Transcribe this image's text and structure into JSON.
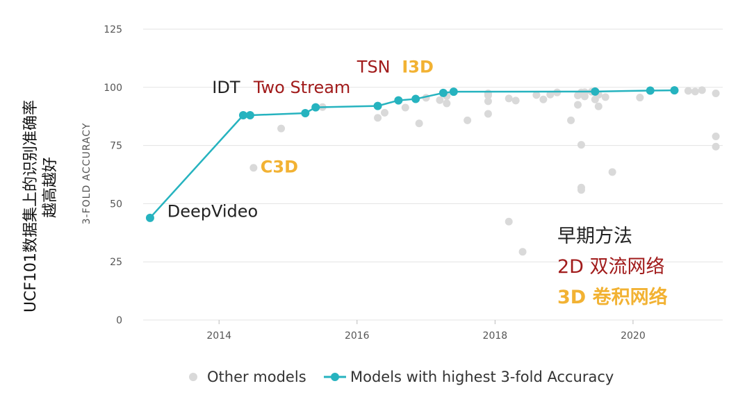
{
  "colors": {
    "best": "#26b3bf",
    "other": "#d9d9d9",
    "red": "#a11b1b",
    "orange": "#f2b233",
    "dark": "#222222",
    "grid": "#e3e3e3"
  },
  "outer_ylabel_lines": [
    "UCF101数据集上的识别准确率",
    "越高越好"
  ],
  "chart_data": {
    "type": "scatter",
    "ylabel": "3-FOLD ACCURACY",
    "xlim": [
      2012.9,
      2021.3
    ],
    "ylim": [
      0,
      125
    ],
    "xticks": [
      2014,
      2016,
      2018,
      2020
    ],
    "yticks": [
      0,
      25,
      50,
      75,
      100,
      125
    ],
    "grid": true,
    "legend_position": "bottom",
    "series": [
      {
        "name": "Other models",
        "points": [
          [
            2014.5,
            65.4
          ],
          [
            2014.9,
            82.3
          ],
          [
            2015.5,
            91.5
          ],
          [
            2016.3,
            86.9
          ],
          [
            2016.4,
            89.1
          ],
          [
            2016.7,
            91.3
          ],
          [
            2016.9,
            84.5
          ],
          [
            2017.0,
            95.5
          ],
          [
            2017.2,
            94.5
          ],
          [
            2017.3,
            96.2
          ],
          [
            2017.3,
            93.1
          ],
          [
            2017.6,
            85.8
          ],
          [
            2017.9,
            88.6
          ],
          [
            2017.9,
            94.0
          ],
          [
            2017.9,
            96.5
          ],
          [
            2017.9,
            97.4
          ],
          [
            2018.2,
            42.3
          ],
          [
            2018.2,
            95.2
          ],
          [
            2018.3,
            94.3
          ],
          [
            2018.4,
            29.3
          ],
          [
            2018.6,
            96.7
          ],
          [
            2018.7,
            94.8
          ],
          [
            2018.8,
            96.9
          ],
          [
            2018.9,
            97.8
          ],
          [
            2019.1,
            85.8
          ],
          [
            2019.2,
            96.5
          ],
          [
            2019.2,
            92.5
          ],
          [
            2019.25,
            97.8
          ],
          [
            2019.25,
            75.3
          ],
          [
            2019.25,
            56.9
          ],
          [
            2019.25,
            55.9
          ],
          [
            2019.3,
            96.1
          ],
          [
            2019.3,
            97.9
          ],
          [
            2019.4,
            98.1
          ],
          [
            2019.45,
            94.8
          ],
          [
            2019.5,
            91.8
          ],
          [
            2019.5,
            96.8
          ],
          [
            2019.6,
            95.8
          ],
          [
            2019.7,
            63.6
          ],
          [
            2020.1,
            95.6
          ],
          [
            2020.8,
            98.5
          ],
          [
            2020.9,
            98.2
          ],
          [
            2021.0,
            98.8
          ],
          [
            2021.2,
            97.4
          ],
          [
            2021.2,
            78.9
          ],
          [
            2021.2,
            74.5
          ]
        ]
      },
      {
        "name": "Models with highest 3-fold Accuracy",
        "points": [
          [
            2013.0,
            43.9
          ],
          [
            2014.35,
            88.0
          ],
          [
            2014.45,
            88.0
          ],
          [
            2015.25,
            88.9
          ],
          [
            2015.4,
            91.4
          ],
          [
            2016.3,
            92.0
          ],
          [
            2016.6,
            94.4
          ],
          [
            2016.85,
            95.0
          ],
          [
            2017.25,
            97.6
          ],
          [
            2017.4,
            98.1
          ],
          [
            2019.45,
            98.2
          ],
          [
            2020.25,
            98.6
          ],
          [
            2020.6,
            98.7
          ]
        ]
      }
    ],
    "annotations": [
      {
        "text": "DeepVideo",
        "x": 2013.25,
        "y": 44.3,
        "color": "dark",
        "bold": false
      },
      {
        "text": "IDT",
        "x": 2013.9,
        "y": 97.6,
        "color": "dark",
        "bold": false
      },
      {
        "text": "Two Stream",
        "x": 2014.5,
        "y": 97.6,
        "color": "red",
        "bold": false
      },
      {
        "text": "TSN",
        "x": 2016.0,
        "y": 106.3,
        "color": "red",
        "bold": false
      },
      {
        "text": "I3D",
        "x": 2016.65,
        "y": 106.3,
        "color": "orange",
        "bold": true
      },
      {
        "text": "C3D",
        "x": 2014.6,
        "y": 63.4,
        "color": "orange",
        "bold": true
      }
    ],
    "notes": [
      {
        "text": "早期方法",
        "color": "dark",
        "bold": false
      },
      {
        "text": "2D 双流网络",
        "color": "red",
        "bold": false
      },
      {
        "text": "3D 卷积网络",
        "color": "orange",
        "bold": true
      }
    ]
  }
}
